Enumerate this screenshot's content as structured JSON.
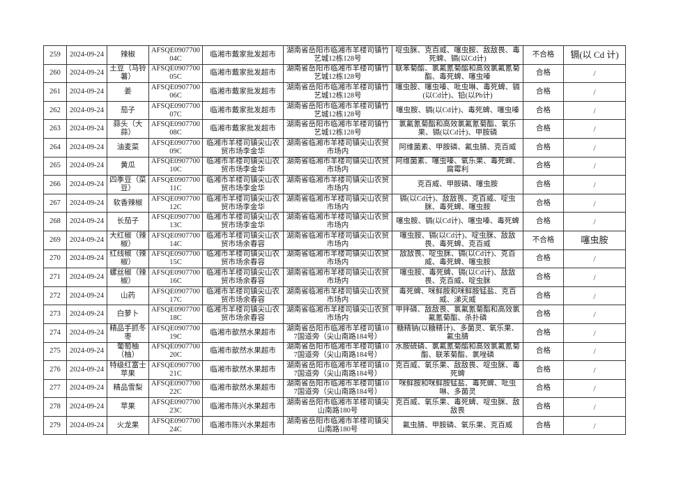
{
  "table": {
    "rows": [
      [
        "259",
        "2024-09-24",
        "辣椒",
        "AFSQE090770004C",
        "临湘市戴家批发超市",
        "湖南省岳阳市临湘市羊楼司镇竹艺城12栋128号",
        "啶虫脒、克百威、噻虫胺、敌敌畏、毒死蜱、镉(以Cd计)",
        "不合格",
        "镉(以 Cd 计)"
      ],
      [
        "260",
        "2024-09-24",
        "土豆（马铃薯）",
        "AFSQE090770005C",
        "临湘市戴家批发超市",
        "湖南省岳阳市临湘市羊楼司镇竹艺城12栋128号",
        "联苯菊酯、氯氟氰菊酯和高效氯氟氰菊酯、毒死蜱、噻虫嗪",
        "合格",
        "/"
      ],
      [
        "261",
        "2024-09-24",
        "姜",
        "AFSQE090770006C",
        "临湘市戴家批发超市",
        "湖南省岳阳市临湘市羊楼司镇竹艺城12栋128号",
        "噻虫胺、噻虫嗪、吡虫啉、毒死蜱、镉(以Cd计)、铅(以Pb计)",
        "合格",
        "/"
      ],
      [
        "262",
        "2024-09-24",
        "茄子",
        "AFSQE090770007C",
        "临湘市戴家批发超市",
        "湖南省岳阳市临湘市羊楼司镇竹艺城12栋128号",
        "噻虫胺、镉(以Cd计)、毒死蜱、噻虫嗪",
        "合格",
        "/"
      ],
      [
        "263",
        "2024-09-24",
        "蒜头（大蒜）",
        "AFSQE090770008C",
        "临湘市戴家批发超市",
        "湖南省岳阳市临湘市羊楼司镇竹艺城12栋128号",
        "氯氟氰菊酯和高效氯氟氰菊酯、氧乐果、镉(以Cd计)、甲胺磷",
        "合格",
        "/"
      ],
      [
        "264",
        "2024-09-24",
        "油麦菜",
        "AFSQE090770009C",
        "临湘市羊楼司镇尖山农贸市场李金华",
        "湖南省临湘市羊楼司镇尖山农贸市场内",
        "阿维菌素、甲胺磷、氟虫腈、克百威",
        "合格",
        "/"
      ],
      [
        "265",
        "2024-09-24",
        "黄瓜",
        "AFSQE090770010C",
        "临湘市羊楼司镇尖山农贸市场李金华",
        "湖南省临湘市羊楼司镇尖山农贸市场内",
        "阿维菌素、噻虫嗪、氧乐果、毒死蜱、腐霉利",
        "合格",
        "/"
      ],
      [
        "266",
        "2024-09-24",
        "四季豆（菜豆）",
        "AFSQE090770011C",
        "临湘市羊楼司镇尖山农贸市场李金华",
        "湖南省临湘市羊楼司镇尖山农贸市场内",
        "克百威、甲胺磷、噻虫胺",
        "合格",
        "/"
      ],
      [
        "267",
        "2024-09-24",
        "软香辣椒",
        "AFSQE090770012C",
        "临湘市羊楼司镇尖山农贸市场李金华",
        "湖南省临湘市羊楼司镇尖山农贸市场内",
        "镉(以Cd计)、敌敌畏、克百威、啶虫脒、毒死蜱、噻虫胺",
        "合格",
        "/"
      ],
      [
        "268",
        "2024-09-24",
        "长茄子",
        "AFSQE090770013C",
        "临湘市羊楼司镇尖山农贸市场李金华",
        "湖南省临湘市羊楼司镇尖山农贸市场内",
        "噻虫胺、镉(以Cd计)、噻虫嗪、毒死蜱",
        "合格",
        "/"
      ],
      [
        "269",
        "2024-09-24",
        "大红椒（辣椒）",
        "AFSQE090770014C",
        "临湘市羊楼司镇尖山农贸市场余春容",
        "湖南省临湘市羊楼司镇尖山农贸市场内",
        "噻虫胺、镉(以Cd计)、啶虫脒、敌敌畏、毒死蜱、克百威",
        "不合格",
        "噻虫胺"
      ],
      [
        "270",
        "2024-09-24",
        "红线椒（辣椒）",
        "AFSQE090770015C",
        "临湘市羊楼司镇尖山农贸市场余春容",
        "湖南省临湘市羊楼司镇尖山农贸市场内",
        "敌敌畏、啶虫脒、镉(以Cd计)、克百威、毒死蜱、噻虫胺",
        "合格",
        "/"
      ],
      [
        "271",
        "2024-09-24",
        "螺丝椒（辣椒）",
        "AFSQE090770016C",
        "临湘市羊楼司镇尖山农贸市场余春容",
        "湖南省临湘市羊楼司镇尖山农贸市场内",
        "噻虫胺、毒死蜱、镉(以Cd计)、敌敌畏、克百威、啶虫脒",
        "合格",
        "/"
      ],
      [
        "272",
        "2024-09-24",
        "山药",
        "AFSQE090770017C",
        "临湘市羊楼司镇尖山农贸市场余春容",
        "湖南省临湘市羊楼司镇尖山农贸市场内",
        "毒死蜱、咪鲜胺和咪鲜胺锰盐、克百威、涕灭威",
        "合格",
        "/"
      ],
      [
        "273",
        "2024-09-24",
        "白萝卜",
        "AFSQE090770018C",
        "临湘市羊楼司镇尖山农贸市场余春容",
        "湖南省临湘市羊楼司镇尖山农贸市场内",
        "甲拌磷、敌敌畏、氯氟氰菊酯和高效氯氟氰菊酯、杀扑磷",
        "合格",
        "/"
      ],
      [
        "274",
        "2024-09-24",
        "精品手抓冬枣",
        "AFSQE090770019C",
        "临湘市歆然水果超市",
        "湖南省岳阳市临湘市羊楼司镇107国道旁（尖山南路184号）",
        "糖精钠(以糖精计)、多菌灵、氧乐果、氟虫腈",
        "合格",
        "/"
      ],
      [
        "275",
        "2024-09-24",
        "葡萄柚（柚）",
        "AFSQE090770020C",
        "临湘市歆然水果超市",
        "湖南省岳阳市临湘市羊楼司镇107国道旁（尖山南路184号）",
        "水胺硫磷、氯氟氰菊酯和高效氯氟氰菊酯、联苯菊酯、氯唑磷",
        "合格",
        "/"
      ],
      [
        "276",
        "2024-09-24",
        "特级红富士苹果",
        "AFSQE090770021C",
        "临湘市歆然水果超市",
        "湖南省岳阳市临湘市羊楼司镇107国道旁（尖山南路184号）",
        "克百威、氧乐果、敌敌畏、啶虫脒、毒死蜱",
        "合格",
        "/"
      ],
      [
        "277",
        "2024-09-24",
        "精品雪梨",
        "AFSQE090770022C",
        "临湘市歆然水果超市",
        "湖南省岳阳市临湘市羊楼司镇107国道旁（尖山南路184号）",
        "咪鲜胺和咪鲜胺锰盐、毒死蜱、吡虫啉、多菌灵",
        "合格",
        "/"
      ],
      [
        "278",
        "2024-09-24",
        "苹果",
        "AFSQE090770023C",
        "临湘市陈兴水果超市",
        "湖南省岳阳市临湘市羊楼司镇尖山南路180号",
        "克百威、氧乐果、毒死蜱、啶虫脒、敌敌畏",
        "合格",
        "/"
      ],
      [
        "279",
        "2024-09-24",
        "火龙果",
        "AFSQE090770024C",
        "临湘市陈兴水果超市",
        "湖南省岳阳市临湘市羊楼司镇尖山南路180号",
        "氟虫腈、甲胺磷、氧乐果、克百威",
        "合格",
        "/"
      ]
    ]
  }
}
